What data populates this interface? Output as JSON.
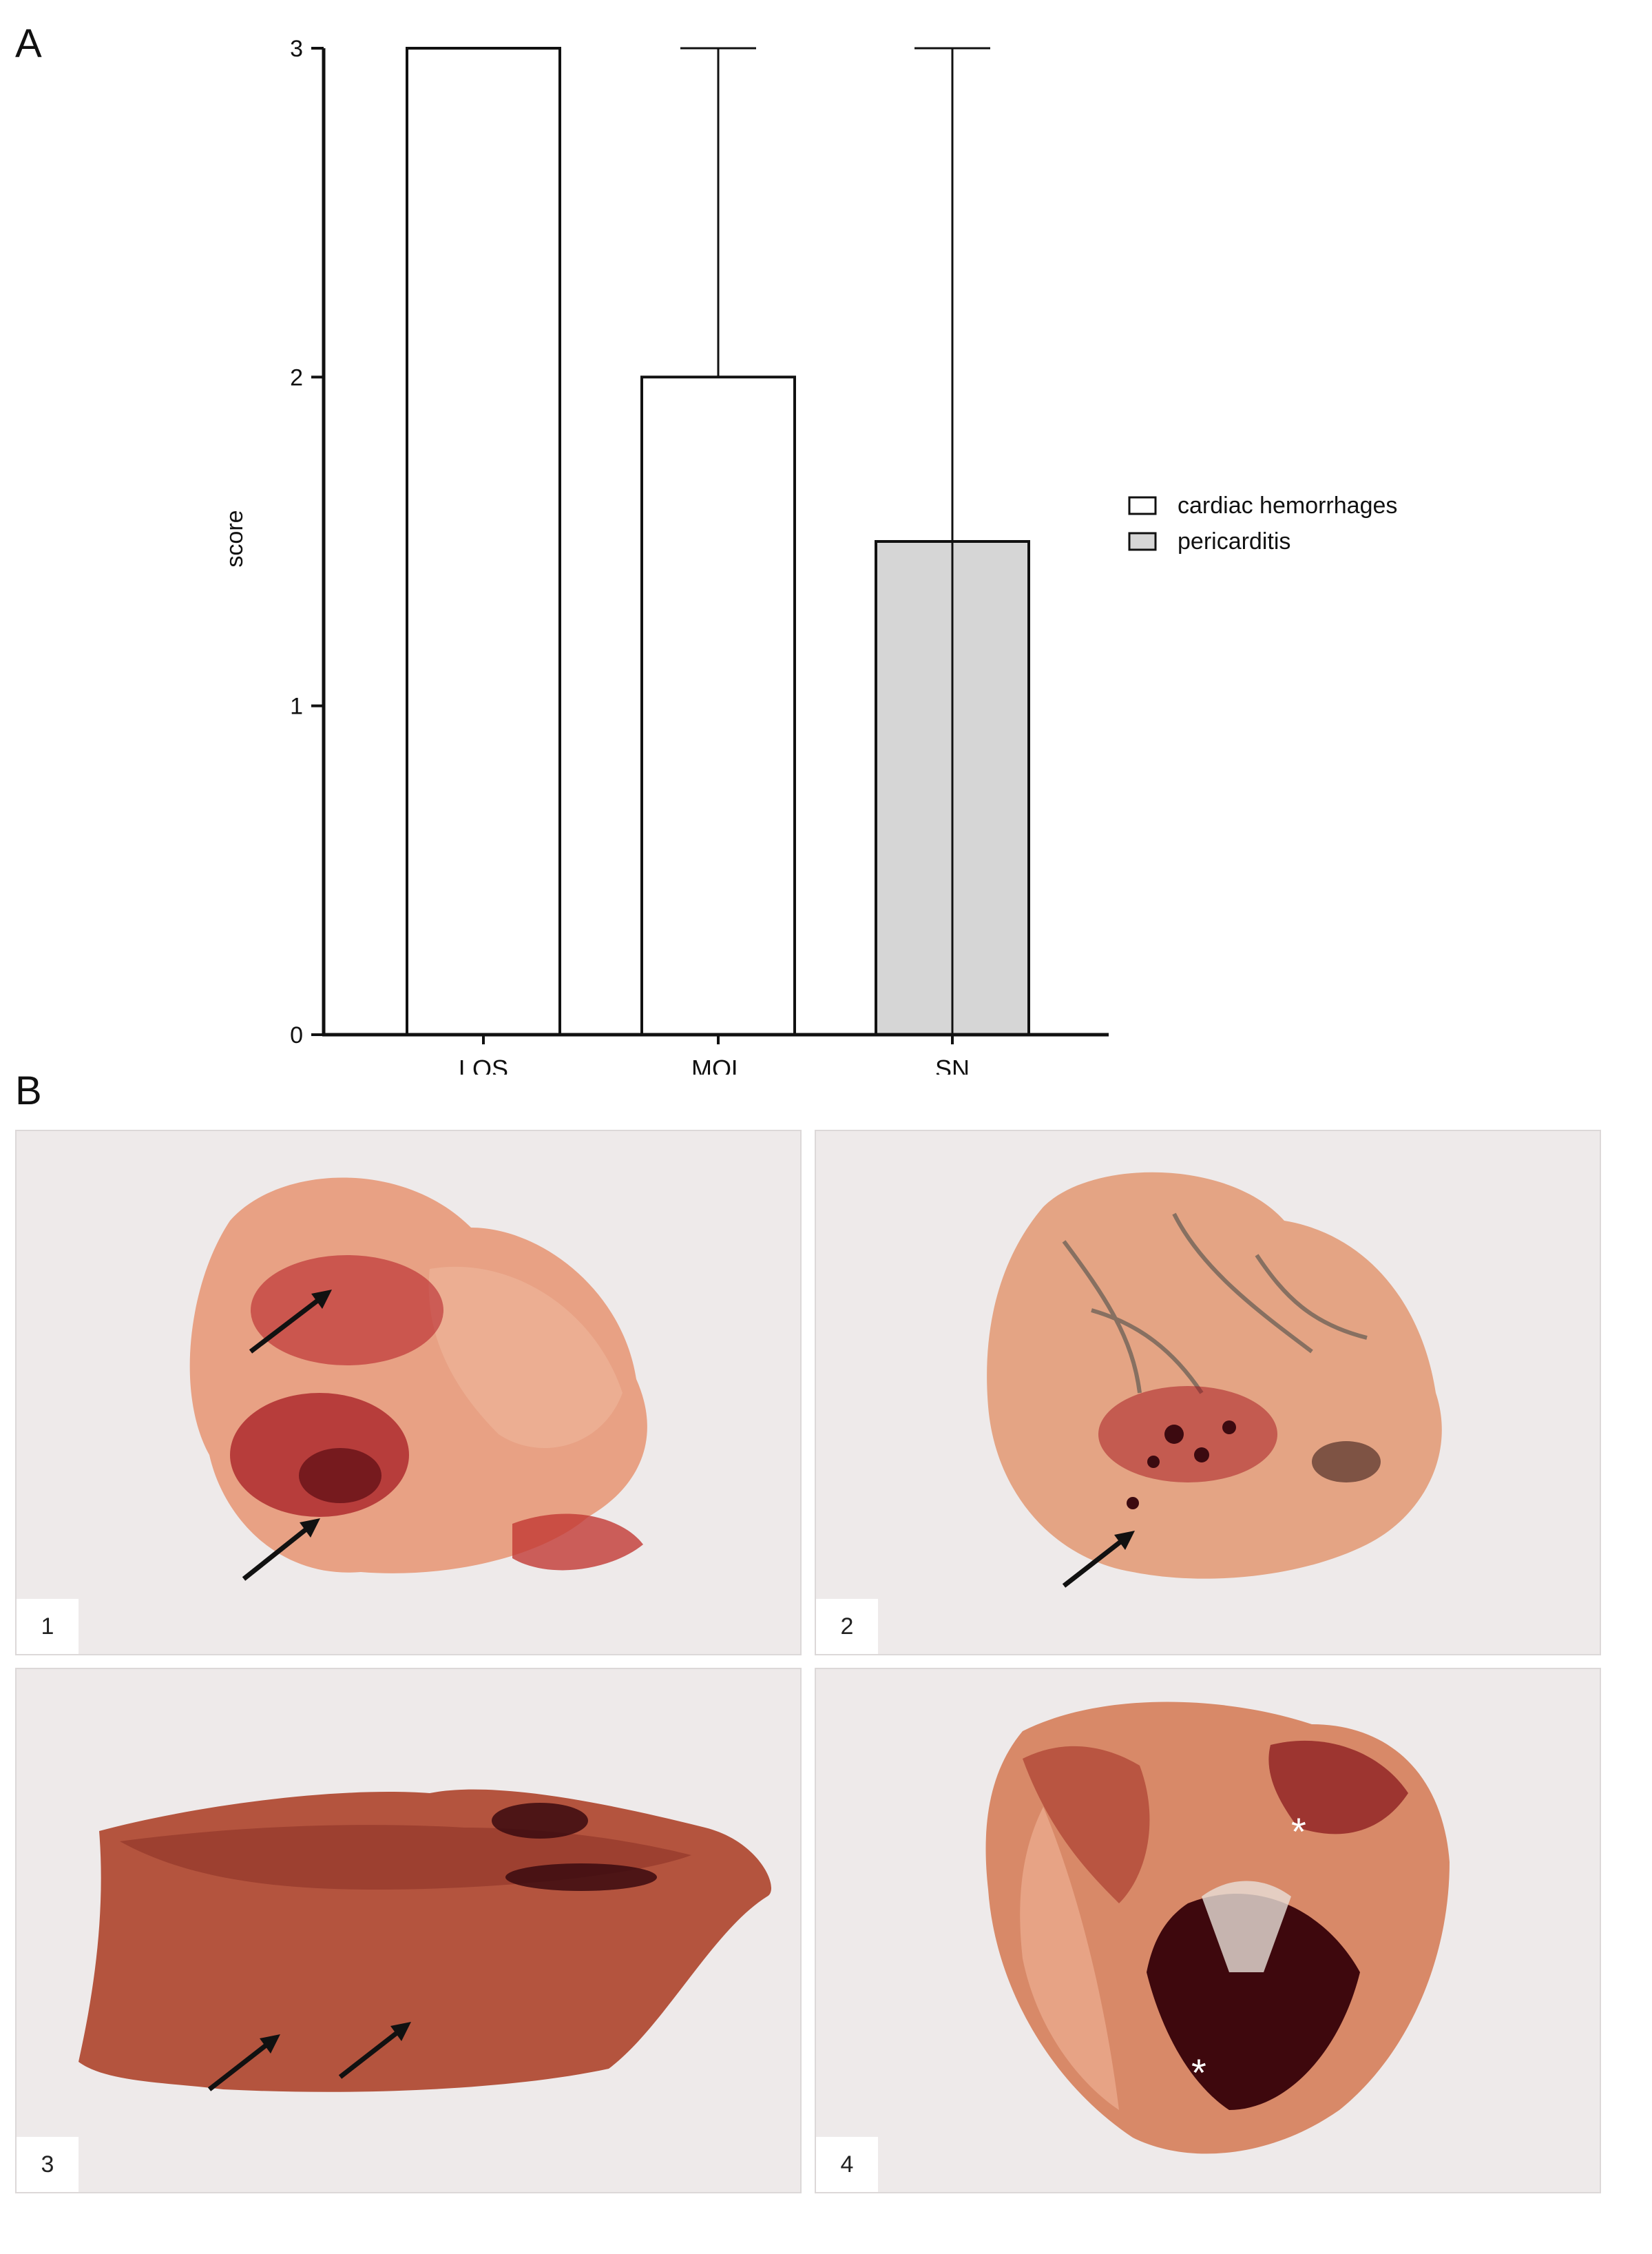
{
  "panel_a_letter": "A",
  "panel_b_letter": "B",
  "chart_data": {
    "type": "bar",
    "categories": [
      "LOS",
      "MOL",
      "SN"
    ],
    "values": [
      3,
      2,
      1.5
    ],
    "error_upper": [
      3,
      3,
      3
    ],
    "error_lower": [
      3,
      2,
      0
    ],
    "bar_series": [
      "cardiac hemorrhages",
      "cardiac hemorrhages",
      "pericarditis"
    ],
    "ylabel": "score",
    "xlabel": "",
    "ylim": [
      0,
      3
    ],
    "yticks": [
      "0",
      "1",
      "2",
      "3"
    ],
    "legend": {
      "placement": "right",
      "entries": [
        {
          "name": "cardiac hemorrhages",
          "color": "#ffffff"
        },
        {
          "name": "pericarditis",
          "color": "#d6d6d6"
        }
      ]
    },
    "grid": false
  },
  "photos": [
    {
      "number": "1",
      "icon": "heart-hemorrhage-photo",
      "arrows": 2
    },
    {
      "number": "2",
      "icon": "heart-hemorrhage-photo",
      "arrows": 1
    },
    {
      "number": "3",
      "icon": "tissue-slice-photo",
      "arrows": 2
    },
    {
      "number": "4",
      "icon": "opened-heart-photo",
      "asterisks": 2
    }
  ],
  "colors": {
    "photo_background": "#eeeaea",
    "tissue_pink": "#e8a184",
    "hemorrhage_red": "#a3121c",
    "slice_brown": "#b4543e"
  }
}
